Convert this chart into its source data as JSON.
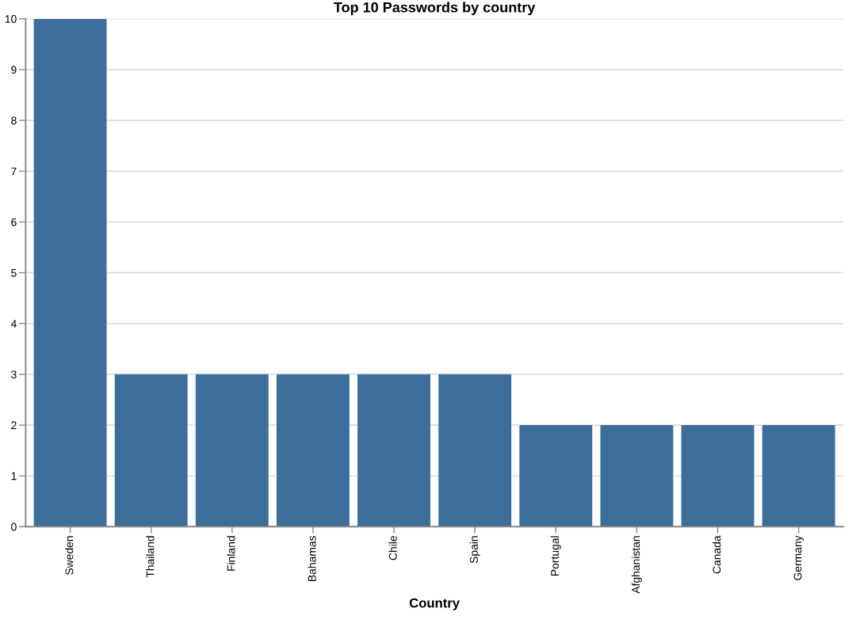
{
  "chart_data": {
    "type": "bar",
    "title": "Top 10 Passwords by country",
    "xlabel": "Country",
    "categories": [
      "Sweden",
      "Thailand",
      "Finland",
      "Bahamas",
      "Chile",
      "Spain",
      "Portugal",
      "Afghanistan",
      "Canada",
      "Germany"
    ],
    "values": [
      10,
      3,
      3,
      3,
      3,
      3,
      2,
      2,
      2,
      2
    ],
    "color": "#3d6e99",
    "ylim": [
      0,
      10
    ],
    "yticks": [
      0,
      1,
      2,
      3,
      4,
      5,
      6,
      7,
      8,
      9,
      10
    ],
    "grid": "y"
  }
}
